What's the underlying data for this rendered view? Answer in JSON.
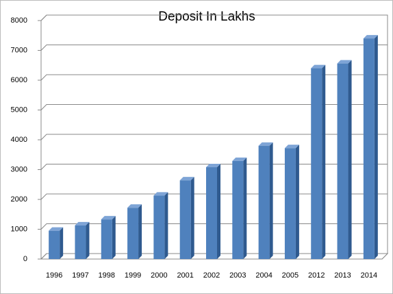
{
  "chart_data": {
    "type": "bar3d",
    "title": "Deposit In Lakhs",
    "categories": [
      "1996",
      "1997",
      "1998",
      "1999",
      "2000",
      "2001",
      "2002",
      "2003",
      "2004",
      "2005",
      "2012",
      "2013",
      "2014"
    ],
    "values": [
      950,
      1130,
      1330,
      1720,
      2130,
      2640,
      3080,
      3290,
      3800,
      3720,
      6400,
      6560,
      7400
    ],
    "color": "#4f81bd",
    "ylim": [
      0,
      8000
    ],
    "yticks": [
      0,
      1000,
      2000,
      3000,
      4000,
      5000,
      6000,
      7000,
      8000
    ],
    "grid": true
  }
}
